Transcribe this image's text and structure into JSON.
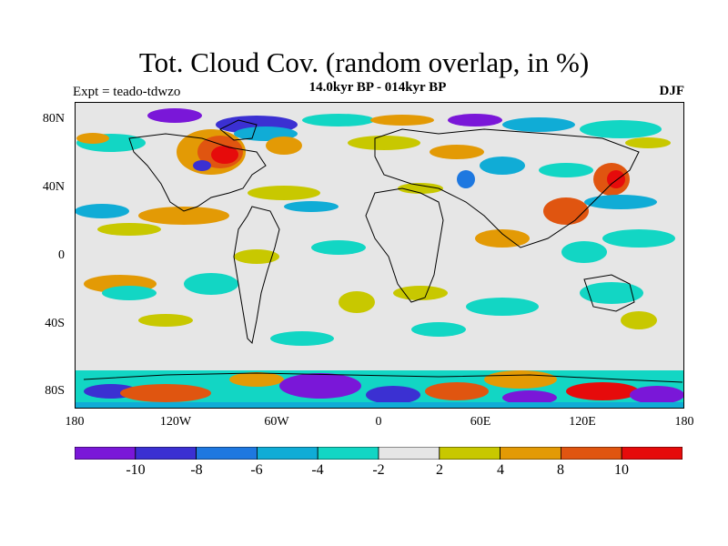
{
  "header": {
    "title": "Tot. Cloud Cov. (random overlap, in %)",
    "subtitle": "14.0kyr BP - 014kyr BP",
    "experiment": "Expt = teado-tdwzo",
    "season": "DJF"
  },
  "map": {
    "y_ticks": [
      "80N",
      "40N",
      "0",
      "40S",
      "80S"
    ],
    "x_ticks": [
      "180",
      "120W",
      "60W",
      "0",
      "60E",
      "120E",
      "180"
    ]
  },
  "colorbar": {
    "labels": [
      "-10",
      "-8",
      "-6",
      "-4",
      "-2",
      "2",
      "4",
      "8",
      "10"
    ],
    "colors": [
      "#7a17d8",
      "#3b30d2",
      "#1e78e0",
      "#10acd6",
      "#12d6c4",
      "#e6e6e6",
      "#c8c800",
      "#e39a05",
      "#e05510",
      "#e60b0b"
    ]
  }
}
